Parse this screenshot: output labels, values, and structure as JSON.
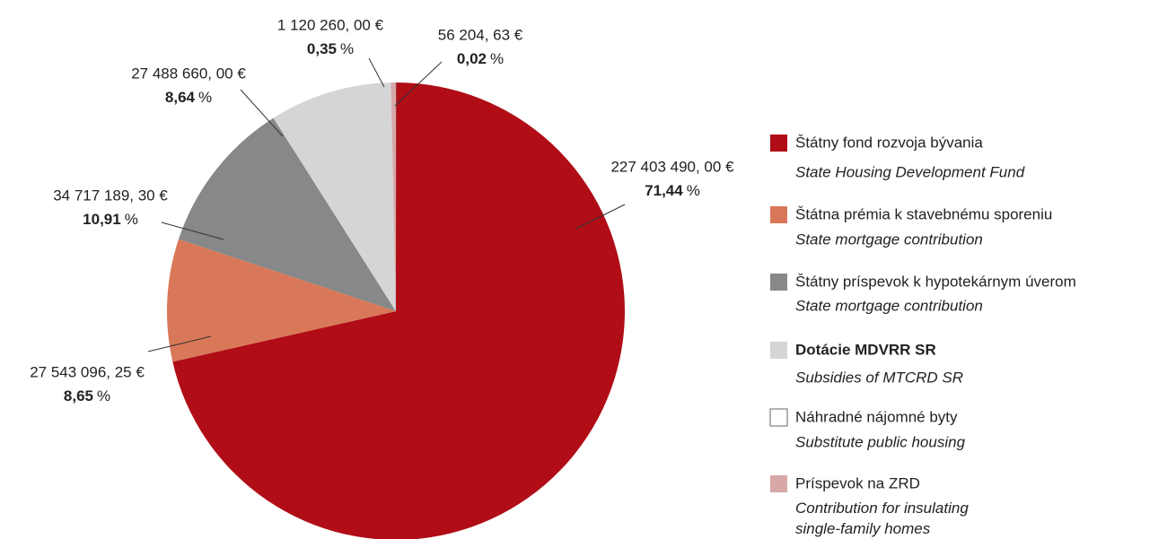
{
  "chart_data": {
    "type": "pie",
    "unit": "%",
    "series": [
      {
        "name": "Štátny fond rozvoja bývania",
        "name_en": "State Housing Development Fund",
        "color": "#b00d17",
        "value": 71.44,
        "value_label": "71,44",
        "amount_label": "227 403 490, 00 €"
      },
      {
        "name": "Štátna prémia k stavebnému sporeniu",
        "name_en": "State mortgage contribution",
        "color": "#d97858",
        "value": 8.65,
        "value_label": "8,65",
        "amount_label": "27 543 096, 25 €"
      },
      {
        "name": "Štátny príspevok k hypotekárnym úverom",
        "name_en": "State mortgage contribution",
        "color": "#87888a",
        "value": 10.91,
        "value_label": "10,91",
        "amount_label": "34 717 189, 30 €"
      },
      {
        "name": "Dotácie MDVRR SR",
        "name_en": "Subsidies of MTCRD SR",
        "color": "#d5d5d7",
        "value": 8.64,
        "value_label": "8,64",
        "amount_label": "27 488 660, 00 €"
      },
      {
        "name": "Náhradné nájomné byty",
        "name_en": "Substitute public housing",
        "color": "#ffffff",
        "value": 0.02,
        "value_label": "0,02",
        "amount_label": "56 204, 63 €"
      },
      {
        "name": "Príspevok na ZRD",
        "name_en": "Contribution for insulating\nsingle-family homes",
        "color": "#d8a8a8",
        "value": 0.35,
        "value_label": "0,35",
        "amount_label": "1 120 260, 00 €"
      }
    ]
  }
}
